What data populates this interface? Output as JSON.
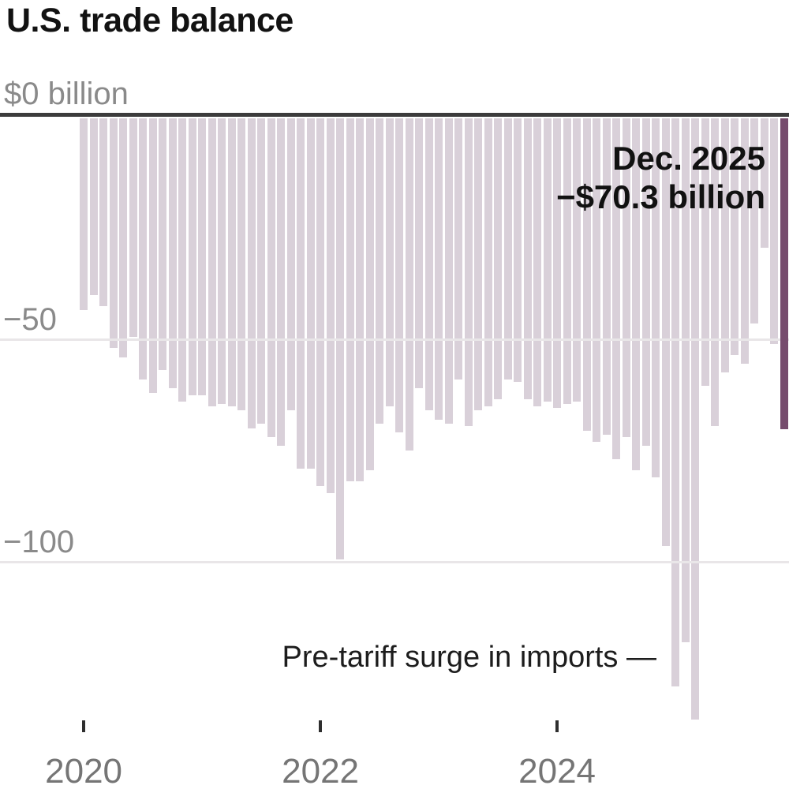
{
  "header": {
    "title": "U.S. trade balance"
  },
  "colors": {
    "background": "#ffffff",
    "bar": "#d9d0d9",
    "bar_highlight": "#764c6d",
    "zero_line": "#3c3c3c",
    "gridline": "#e9e6e8",
    "axis_text": "#8a8a8a",
    "x_label_text": "#757575",
    "annotation_text": "#111111"
  },
  "chart_data": {
    "type": "bar",
    "title": "U.S. trade balance",
    "unit": "billions of U.S. dollars",
    "zero_axis_label": "$0 billion",
    "ylim": [
      -150,
      0
    ],
    "grid": "horizontal",
    "legend": "none",
    "y_ticks": [
      {
        "value": -50,
        "label": "−50"
      },
      {
        "value": -100,
        "label": "−100"
      }
    ],
    "x_ticks": [
      {
        "index": 0,
        "label": "2020"
      },
      {
        "index": 24,
        "label": "2022"
      },
      {
        "index": 48,
        "label": "2024"
      }
    ],
    "categories": [
      "Jan 2020",
      "Feb 2020",
      "Mar 2020",
      "Apr 2020",
      "May 2020",
      "Jun 2020",
      "Jul 2020",
      "Aug 2020",
      "Sep 2020",
      "Oct 2020",
      "Nov 2020",
      "Dec 2020",
      "Jan 2021",
      "Feb 2021",
      "Mar 2021",
      "Apr 2021",
      "May 2021",
      "Jun 2021",
      "Jul 2021",
      "Aug 2021",
      "Sep 2021",
      "Oct 2021",
      "Nov 2021",
      "Dec 2021",
      "Jan 2022",
      "Feb 2022",
      "Mar 2022",
      "Apr 2022",
      "May 2022",
      "Jun 2022",
      "Jul 2022",
      "Aug 2022",
      "Sep 2022",
      "Oct 2022",
      "Nov 2022",
      "Dec 2022",
      "Jan 2023",
      "Feb 2023",
      "Mar 2023",
      "Apr 2023",
      "May 2023",
      "Jun 2023",
      "Jul 2023",
      "Aug 2023",
      "Sep 2023",
      "Oct 2023",
      "Nov 2023",
      "Dec 2023",
      "Jan 2024",
      "Feb 2024",
      "Mar 2024",
      "Apr 2024",
      "May 2024",
      "Jun 2024",
      "Jul 2024",
      "Aug 2024",
      "Sep 2024",
      "Oct 2024",
      "Nov 2024",
      "Dec 2024",
      "Jan 2025",
      "Feb 2025",
      "Mar 2025",
      "Apr 2025",
      "May 2025",
      "Jun 2025",
      "Jul 2025",
      "Aug 2025",
      "Sep 2025",
      "Oct 2025",
      "Nov 2025",
      "Dec 2025"
    ],
    "values": [
      -43.5,
      -40,
      -42.5,
      -52,
      -54,
      -49.5,
      -59,
      -62,
      -57,
      -61,
      -64,
      -62.5,
      -62.5,
      -65,
      -64.5,
      -65,
      -66,
      -70,
      -69,
      -72,
      -74,
      -66,
      -79,
      -79,
      -83,
      -84.5,
      -99.5,
      -82,
      -82,
      -79.5,
      -69,
      -65,
      -71,
      -75,
      -61,
      -66,
      -68,
      -69,
      -59,
      -69.5,
      -66,
      -65,
      -63.5,
      -59,
      -59.5,
      -63.5,
      -65,
      -64,
      -65.5,
      -64.5,
      -64,
      -70.5,
      -73,
      -71.5,
      -77,
      -72,
      -79.5,
      -74,
      -81,
      -96.5,
      -128,
      -118,
      -135.5,
      -60.5,
      -69.5,
      -57.5,
      -53.5,
      -55.5,
      -46.5,
      -29.5,
      -51,
      -70.3
    ],
    "highlight": {
      "index": 71,
      "label": "Dec. 2025",
      "value_label": "−$70.3 billion"
    },
    "annotations": [
      {
        "text": "Pre-tariff surge in imports —",
        "points_to": "Feb 2025"
      }
    ]
  }
}
